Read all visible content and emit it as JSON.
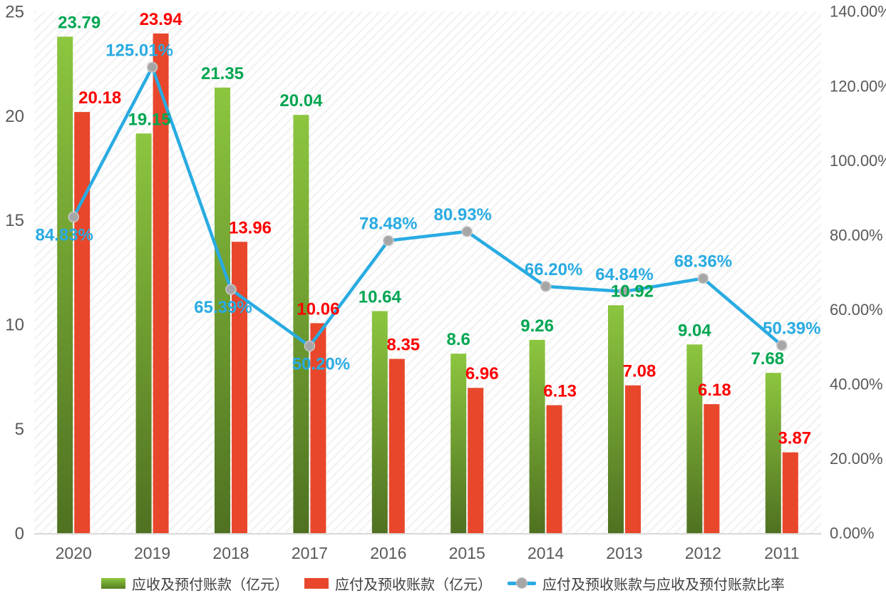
{
  "chart_data": {
    "type": "bar+line combo",
    "title": "",
    "categories": [
      "2020",
      "2019",
      "2018",
      "2017",
      "2016",
      "2015",
      "2014",
      "2013",
      "2012",
      "2011"
    ],
    "series": [
      {
        "name": "应收及预付账款（亿元）",
        "type": "bar",
        "axis": "left",
        "color_top": "#8cc63f",
        "color_bottom": "#4f7121",
        "label_color": "#00a651",
        "values": [
          23.79,
          19.15,
          21.35,
          20.04,
          10.64,
          8.6,
          9.26,
          10.92,
          9.04,
          7.68
        ],
        "labels": [
          "23.79",
          "19.15",
          "21.35",
          "20.04",
          "10.64",
          "8.6",
          "9.26",
          "10.92",
          "9.04",
          "7.68"
        ]
      },
      {
        "name": "应付及预收账款（亿元）",
        "type": "bar",
        "axis": "left",
        "color": "#e8472b",
        "label_color": "#fe0000",
        "values": [
          20.18,
          23.94,
          13.96,
          10.06,
          8.35,
          6.96,
          6.13,
          7.08,
          6.18,
          3.87
        ],
        "labels": [
          "20.18",
          "23.94",
          "13.96",
          "10.06",
          "8.35",
          "6.96",
          "6.13",
          "7.08",
          "6.18",
          "3.87"
        ]
      },
      {
        "name": "应付及预收账款与应收及预付账款比率",
        "type": "line",
        "axis": "right",
        "color": "#29abe2",
        "marker_color": "#a6a6a6",
        "label_color": "#29abe2",
        "values_pct": [
          84.83,
          125.01,
          65.39,
          50.2,
          78.48,
          80.93,
          66.2,
          64.84,
          68.36,
          50.39
        ],
        "labels": [
          "84.83%",
          "125.01%",
          "65.39%",
          "50.20%",
          "78.48%",
          "80.93%",
          "66.20%",
          "64.84%",
          "68.36%",
          "50.39%"
        ],
        "label_below": [
          true,
          false,
          true,
          true,
          false,
          false,
          false,
          false,
          false,
          false
        ]
      }
    ],
    "left_axis": {
      "min": 0,
      "max": 25,
      "ticks": [
        "0",
        "5",
        "10",
        "15",
        "20",
        "25"
      ]
    },
    "right_axis": {
      "min": 0,
      "max": 140,
      "ticks": [
        "0.00%",
        "20.00%",
        "40.00%",
        "60.00%",
        "80.00%",
        "100.00%",
        "120.00%",
        "140.00%"
      ]
    },
    "grid": false,
    "plot_background": "diagonal-hatch",
    "axis_text_color": "#595959",
    "axis_line_color": "#d9d9d9",
    "legend_position": "bottom"
  }
}
